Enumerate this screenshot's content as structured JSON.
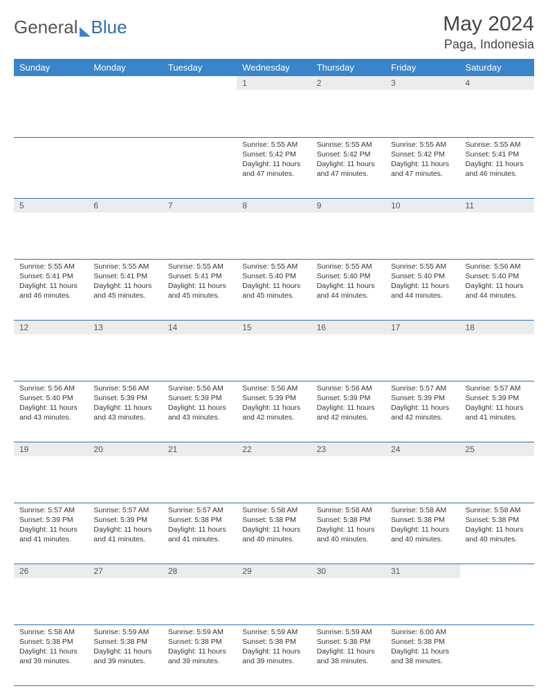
{
  "brand": {
    "part1": "General",
    "part2": "Blue"
  },
  "title": "May 2024",
  "location": "Paga, Indonesia",
  "colors": {
    "header_bg": "#3a85c9",
    "header_text": "#ffffff",
    "rule": "#2f6fa7",
    "daynum_bg": "#ececec",
    "body_text": "#333333"
  },
  "day_headers": [
    "Sunday",
    "Monday",
    "Tuesday",
    "Wednesday",
    "Thursday",
    "Friday",
    "Saturday"
  ],
  "weeks": [
    [
      {
        "n": "",
        "sr": "",
        "ss": "",
        "dl": ""
      },
      {
        "n": "",
        "sr": "",
        "ss": "",
        "dl": ""
      },
      {
        "n": "",
        "sr": "",
        "ss": "",
        "dl": ""
      },
      {
        "n": "1",
        "sr": "5:55 AM",
        "ss": "5:42 PM",
        "dl": "11 hours and 47 minutes."
      },
      {
        "n": "2",
        "sr": "5:55 AM",
        "ss": "5:42 PM",
        "dl": "11 hours and 47 minutes."
      },
      {
        "n": "3",
        "sr": "5:55 AM",
        "ss": "5:42 PM",
        "dl": "11 hours and 47 minutes."
      },
      {
        "n": "4",
        "sr": "5:55 AM",
        "ss": "5:41 PM",
        "dl": "11 hours and 46 minutes."
      }
    ],
    [
      {
        "n": "5",
        "sr": "5:55 AM",
        "ss": "5:41 PM",
        "dl": "11 hours and 46 minutes."
      },
      {
        "n": "6",
        "sr": "5:55 AM",
        "ss": "5:41 PM",
        "dl": "11 hours and 45 minutes."
      },
      {
        "n": "7",
        "sr": "5:55 AM",
        "ss": "5:41 PM",
        "dl": "11 hours and 45 minutes."
      },
      {
        "n": "8",
        "sr": "5:55 AM",
        "ss": "5:40 PM",
        "dl": "11 hours and 45 minutes."
      },
      {
        "n": "9",
        "sr": "5:55 AM",
        "ss": "5:40 PM",
        "dl": "11 hours and 44 minutes."
      },
      {
        "n": "10",
        "sr": "5:55 AM",
        "ss": "5:40 PM",
        "dl": "11 hours and 44 minutes."
      },
      {
        "n": "11",
        "sr": "5:56 AM",
        "ss": "5:40 PM",
        "dl": "11 hours and 44 minutes."
      }
    ],
    [
      {
        "n": "12",
        "sr": "5:56 AM",
        "ss": "5:40 PM",
        "dl": "11 hours and 43 minutes."
      },
      {
        "n": "13",
        "sr": "5:56 AM",
        "ss": "5:39 PM",
        "dl": "11 hours and 43 minutes."
      },
      {
        "n": "14",
        "sr": "5:56 AM",
        "ss": "5:39 PM",
        "dl": "11 hours and 43 minutes."
      },
      {
        "n": "15",
        "sr": "5:56 AM",
        "ss": "5:39 PM",
        "dl": "11 hours and 42 minutes."
      },
      {
        "n": "16",
        "sr": "5:56 AM",
        "ss": "5:39 PM",
        "dl": "11 hours and 42 minutes."
      },
      {
        "n": "17",
        "sr": "5:57 AM",
        "ss": "5:39 PM",
        "dl": "11 hours and 42 minutes."
      },
      {
        "n": "18",
        "sr": "5:57 AM",
        "ss": "5:39 PM",
        "dl": "11 hours and 41 minutes."
      }
    ],
    [
      {
        "n": "19",
        "sr": "5:57 AM",
        "ss": "5:39 PM",
        "dl": "11 hours and 41 minutes."
      },
      {
        "n": "20",
        "sr": "5:57 AM",
        "ss": "5:39 PM",
        "dl": "11 hours and 41 minutes."
      },
      {
        "n": "21",
        "sr": "5:57 AM",
        "ss": "5:38 PM",
        "dl": "11 hours and 41 minutes."
      },
      {
        "n": "22",
        "sr": "5:58 AM",
        "ss": "5:38 PM",
        "dl": "11 hours and 40 minutes."
      },
      {
        "n": "23",
        "sr": "5:58 AM",
        "ss": "5:38 PM",
        "dl": "11 hours and 40 minutes."
      },
      {
        "n": "24",
        "sr": "5:58 AM",
        "ss": "5:38 PM",
        "dl": "11 hours and 40 minutes."
      },
      {
        "n": "25",
        "sr": "5:58 AM",
        "ss": "5:38 PM",
        "dl": "11 hours and 40 minutes."
      }
    ],
    [
      {
        "n": "26",
        "sr": "5:58 AM",
        "ss": "5:38 PM",
        "dl": "11 hours and 39 minutes."
      },
      {
        "n": "27",
        "sr": "5:59 AM",
        "ss": "5:38 PM",
        "dl": "11 hours and 39 minutes."
      },
      {
        "n": "28",
        "sr": "5:59 AM",
        "ss": "5:38 PM",
        "dl": "11 hours and 39 minutes."
      },
      {
        "n": "29",
        "sr": "5:59 AM",
        "ss": "5:38 PM",
        "dl": "11 hours and 39 minutes."
      },
      {
        "n": "30",
        "sr": "5:59 AM",
        "ss": "5:38 PM",
        "dl": "11 hours and 38 minutes."
      },
      {
        "n": "31",
        "sr": "6:00 AM",
        "ss": "5:38 PM",
        "dl": "11 hours and 38 minutes."
      },
      {
        "n": "",
        "sr": "",
        "ss": "",
        "dl": ""
      }
    ]
  ],
  "labels": {
    "sunrise": "Sunrise:",
    "sunset": "Sunset:",
    "daylight": "Daylight:"
  }
}
